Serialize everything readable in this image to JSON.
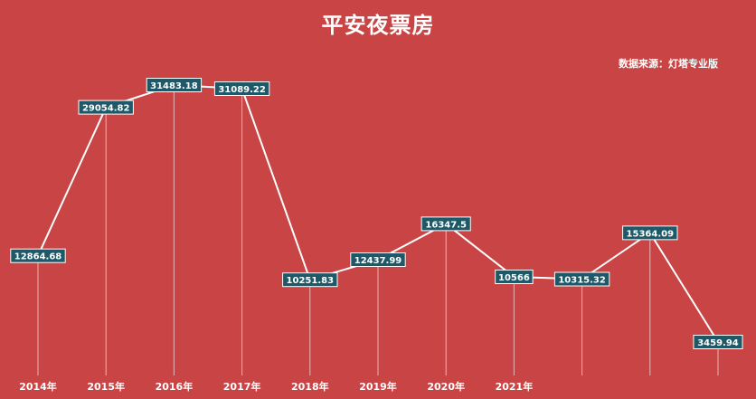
{
  "chart_data": {
    "type": "line",
    "title": "平安夜票房",
    "source": "数据来源：灯塔专业版",
    "categories": [
      "2014年",
      "2015年",
      "2016年",
      "2017年",
      "2018年",
      "2019年",
      "2020年",
      "2021年",
      "",
      "",
      ""
    ],
    "values": [
      12864.68,
      29054.82,
      31483.18,
      31089.22,
      10251.83,
      12437.99,
      16347.5,
      10566,
      10315.32,
      15364.09,
      3459.94
    ],
    "labels": [
      "12864.68",
      "29054.82",
      "31483.18",
      "31089.22",
      "10251.83",
      "12437.99",
      "16347.5",
      "10566",
      "10315.32",
      "15364.09",
      "3459.94"
    ],
    "grid": false,
    "legend": "none",
    "colors": {
      "background": "#c94444",
      "line": "#ffffff",
      "label_box": "#1d5968",
      "drop_line": "#e8b5b5"
    }
  }
}
